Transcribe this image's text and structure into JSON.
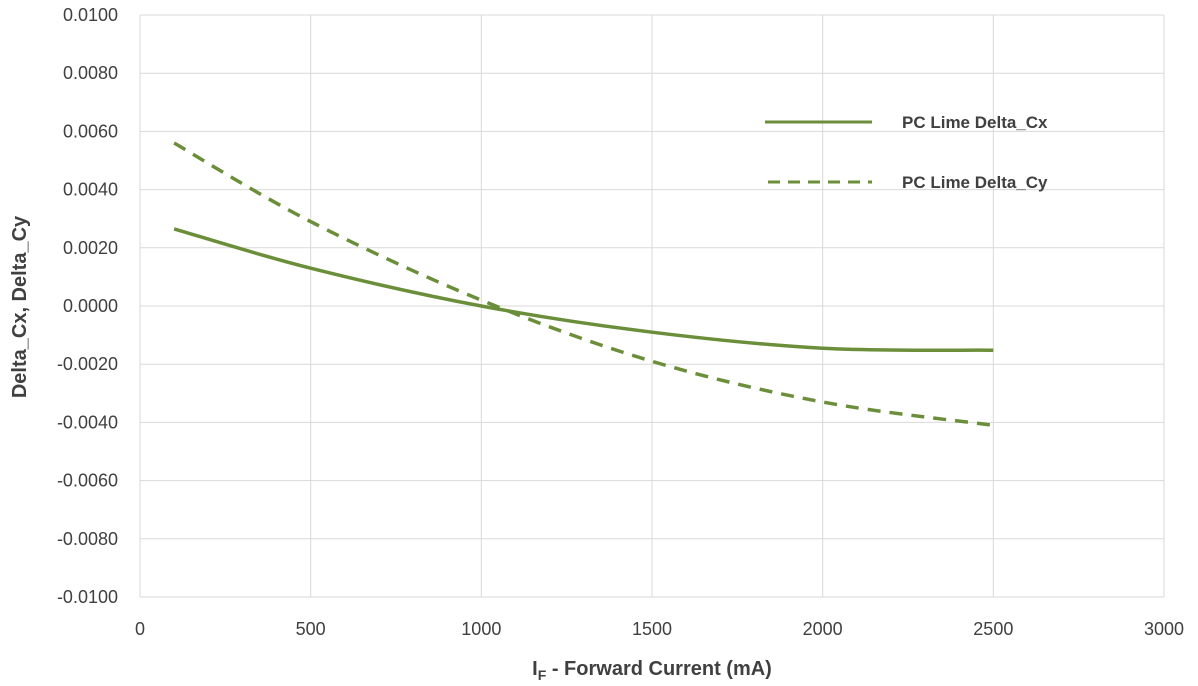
{
  "chart_data": {
    "type": "line",
    "title": "",
    "xlabel_main": "I",
    "xlabel_sub": "F",
    "xlabel_rest": " - Forward Current (mA)",
    "ylabel": "Delta_Cx, Delta_Cy",
    "xlim": [
      0,
      3000
    ],
    "ylim": [
      -0.01,
      0.01
    ],
    "x_ticks": [
      "0",
      "500",
      "1000",
      "1500",
      "2000",
      "2500",
      "3000"
    ],
    "y_ticks": [
      "0.0100",
      "0.0080",
      "0.0060",
      "0.0040",
      "0.0020",
      "0.0000",
      "-0.0020",
      "-0.0040",
      "-0.0060",
      "-0.0080",
      "-0.0100"
    ],
    "grid": true,
    "legend_position": "top-right",
    "series": [
      {
        "name": "PC Lime Delta_Cx",
        "style": "solid",
        "color": "#6b8e3a",
        "x": [
          100,
          500,
          1000,
          1500,
          2000,
          2500
        ],
        "y": [
          0.00265,
          0.0013,
          0.0,
          -0.0009,
          -0.00145,
          -0.00152
        ]
      },
      {
        "name": "PC Lime Delta_Cy",
        "style": "dashed",
        "color": "#6b8e3a",
        "x": [
          100,
          500,
          1000,
          1500,
          2000,
          2500
        ],
        "y": [
          0.0056,
          0.0029,
          0.0002,
          -0.0019,
          -0.0033,
          -0.0041
        ]
      }
    ]
  }
}
